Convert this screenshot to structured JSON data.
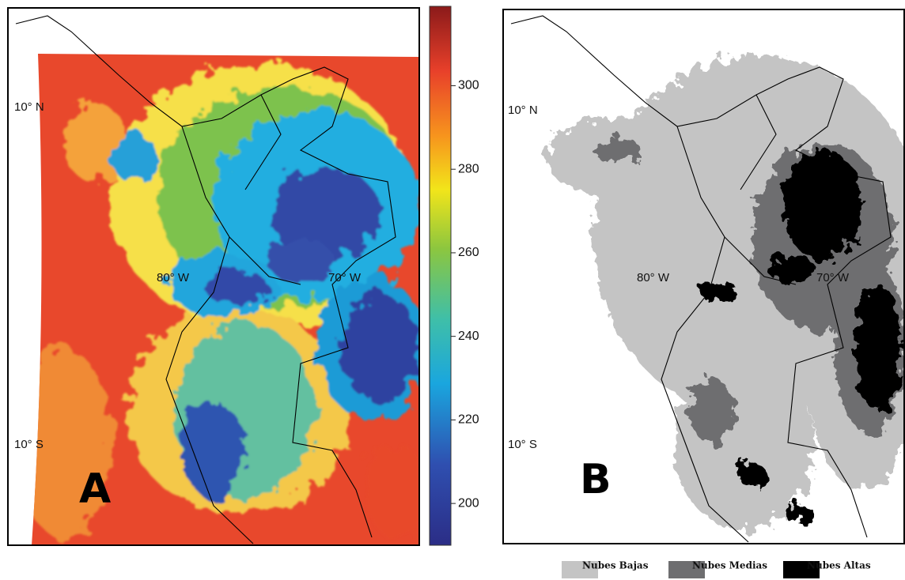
{
  "panels": [
    {
      "label": "A",
      "lat_labels": [
        "10° N",
        "10° S"
      ],
      "lon_labels": [
        "80° W",
        "70° W"
      ]
    },
    {
      "label": "B",
      "lat_labels": [
        "10° N",
        "10° S"
      ],
      "lon_labels": [
        "80° W",
        "70° W"
      ]
    }
  ],
  "colorbar": {
    "range": [
      190,
      319
    ],
    "ticks": [
      200,
      220,
      240,
      260,
      280,
      300
    ]
  },
  "legend": [
    {
      "label": "Nubes Bajas",
      "color": "#c4c4c4"
    },
    {
      "label": "Nubes Medias",
      "color": "#6e6e70"
    },
    {
      "label": "Nubes Altas",
      "color": "#000000"
    }
  ]
}
